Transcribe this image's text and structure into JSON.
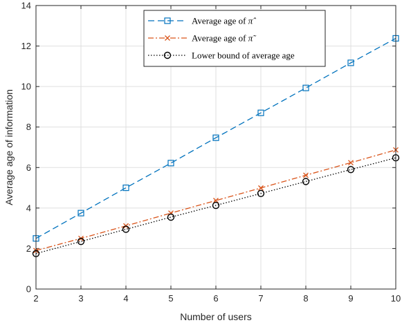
{
  "chart_data": {
    "type": "line",
    "x": [
      2,
      3,
      4,
      5,
      6,
      7,
      8,
      9,
      10
    ],
    "xlabel": "Number of users",
    "ylabel": "Average age of information",
    "xlim": [
      2,
      10
    ],
    "ylim": [
      0,
      14
    ],
    "xticks": [
      "2",
      "3",
      "4",
      "5",
      "6",
      "7",
      "8",
      "9",
      "10"
    ],
    "yticks": [
      "0",
      "2",
      "4",
      "6",
      "8",
      "10",
      "12",
      "14"
    ],
    "grid": true,
    "legend_position": "top-center",
    "series": [
      {
        "name": "Average age of π̂",
        "legend_prefix": "Average age of ",
        "legend_symbol": "π̂",
        "color": "#0072bd",
        "line_style": "dashed",
        "marker": "square",
        "values": [
          2.5,
          3.75,
          5.0,
          6.22,
          7.47,
          8.7,
          9.93,
          11.17,
          12.38
        ]
      },
      {
        "name": "Average age of π̃",
        "legend_prefix": "Average age of ",
        "legend_symbol": "π̃",
        "color": "#d95319",
        "line_style": "dash-dot",
        "marker": "x",
        "values": [
          1.9,
          2.5,
          3.12,
          3.75,
          4.37,
          4.99,
          5.62,
          6.24,
          6.87
        ]
      },
      {
        "name": "Lower bound of average age",
        "legend_prefix": "Lower bound of average age",
        "legend_symbol": "",
        "color": "#000000",
        "line_style": "dotted",
        "marker": "circle",
        "values": [
          1.75,
          2.35,
          2.95,
          3.55,
          4.13,
          4.72,
          5.31,
          5.9,
          6.48
        ]
      }
    ]
  }
}
